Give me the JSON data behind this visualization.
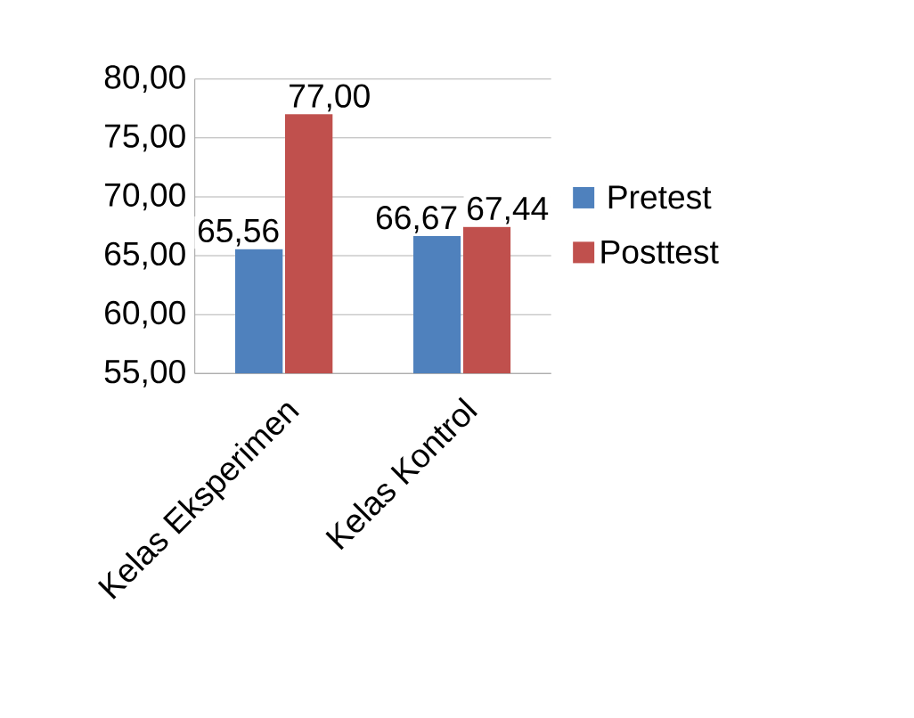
{
  "chart_data": {
    "type": "bar",
    "categories": [
      "Kelas Eksperimen",
      "Kelas Kontrol"
    ],
    "series": [
      {
        "name": "Pretest",
        "color": "#4f81bd",
        "values": [
          65.56,
          66.67
        ],
        "value_labels": [
          "65,56",
          "66,67"
        ]
      },
      {
        "name": "Posttest",
        "color": "#c0504d",
        "values": [
          77.0,
          67.44
        ],
        "value_labels": [
          "77,00",
          "67,44"
        ]
      }
    ],
    "ylim": [
      55,
      80
    ],
    "yticks": [
      {
        "value": 55,
        "label": "55,00"
      },
      {
        "value": 60,
        "label": "60,00"
      },
      {
        "value": 65,
        "label": "65,00"
      },
      {
        "value": 70,
        "label": "70,00"
      },
      {
        "value": 75,
        "label": "75,00"
      },
      {
        "value": 80,
        "label": "80,00"
      }
    ],
    "grid": "y",
    "legend": "right"
  }
}
